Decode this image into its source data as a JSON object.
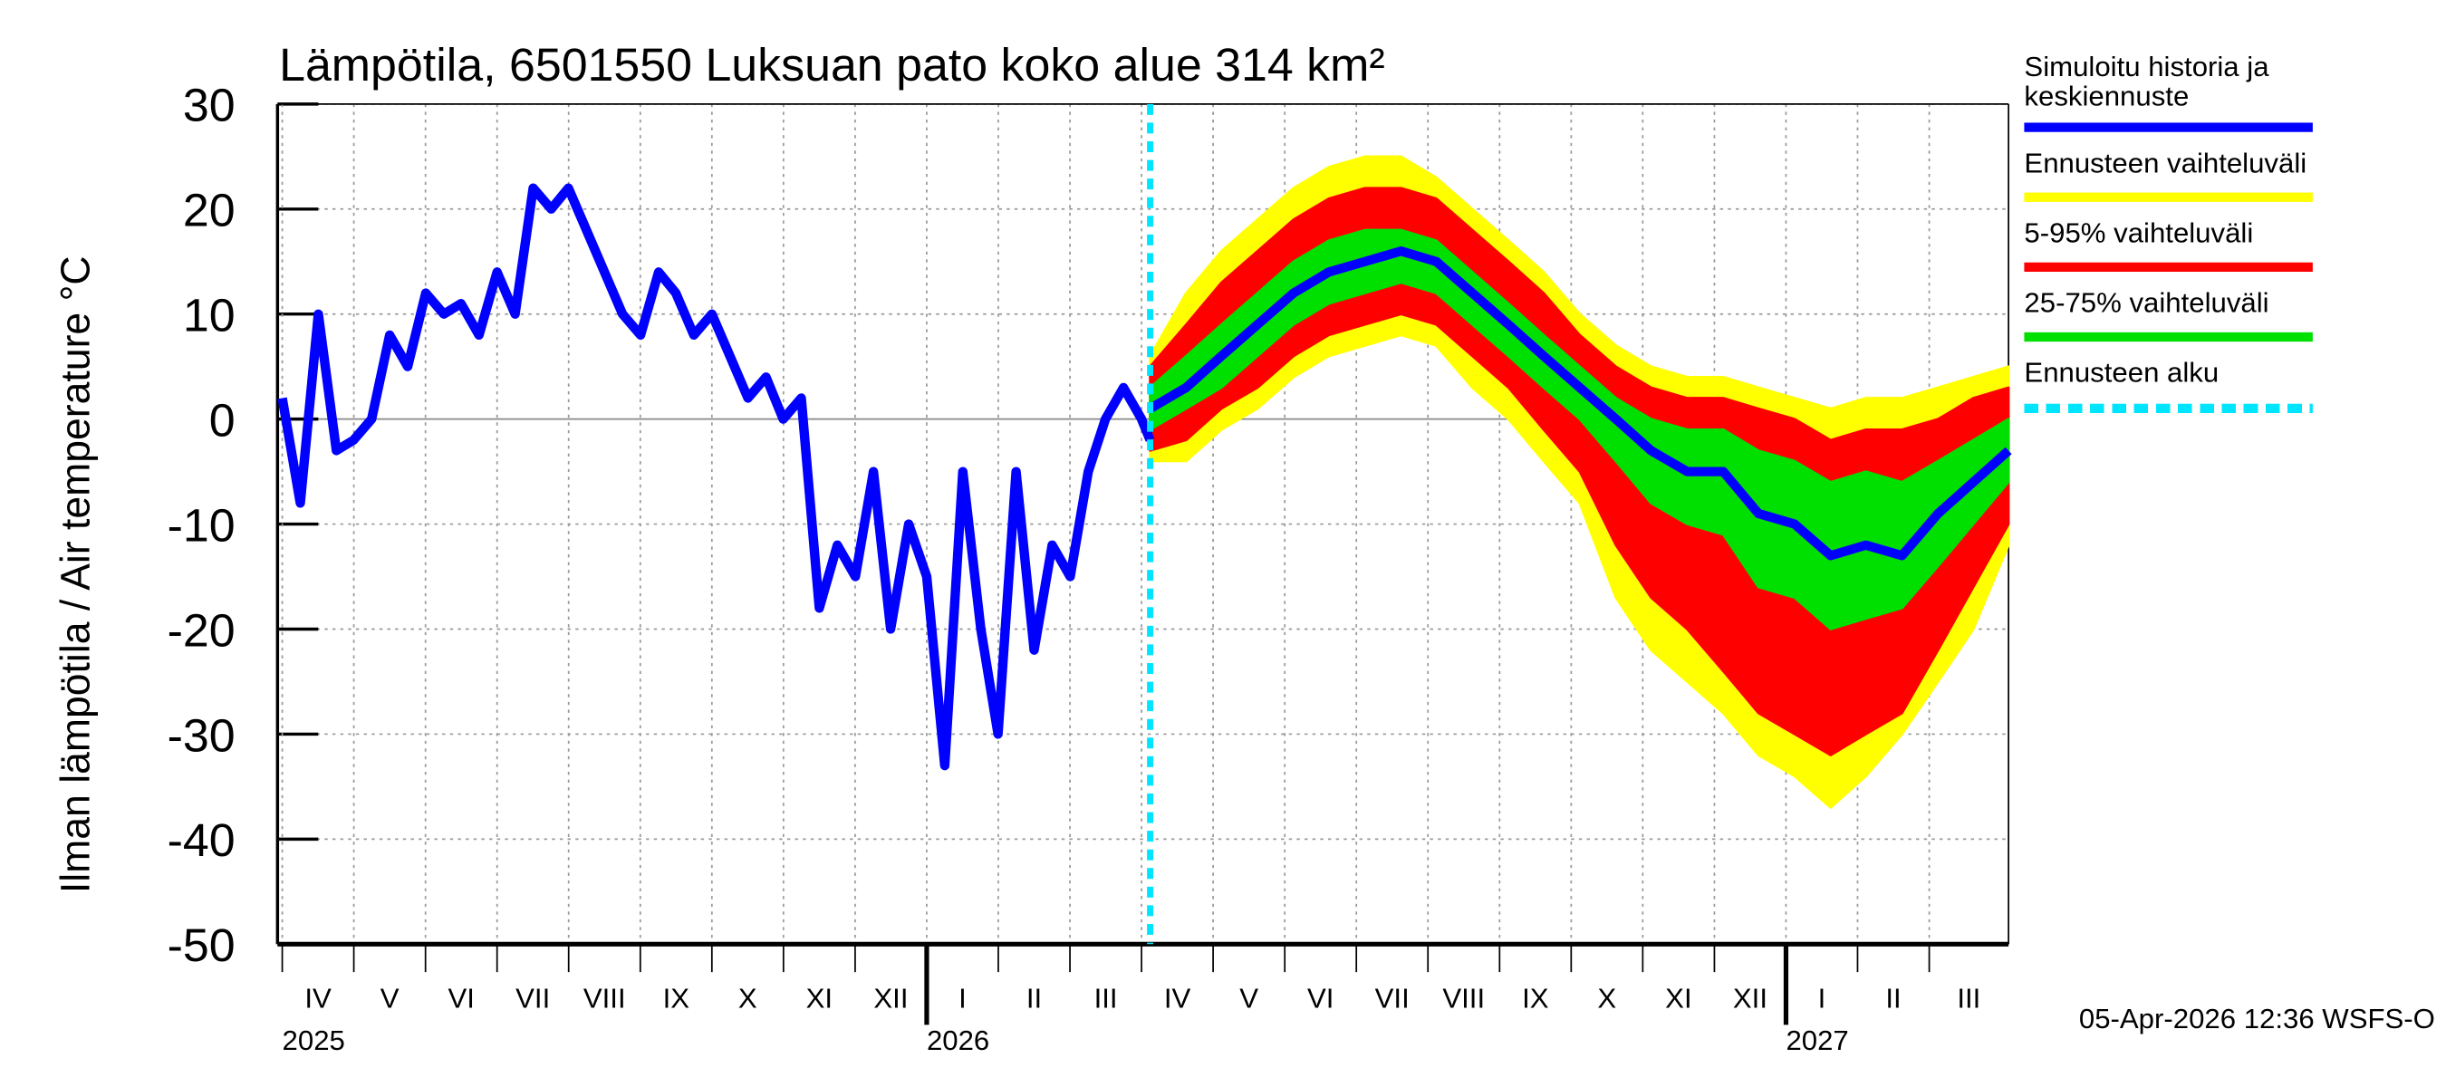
{
  "chart_data": {
    "type": "line",
    "title": "Lämpötila, 6501550 Luksuan pato koko alue 314 km²",
    "y_label": "Ilman lämpötila / Air temperature   °C",
    "footer": "05-Apr-2026 12:36 WSFS-O",
    "xlim": [
      2025.2445,
      2027.259
    ],
    "ylim": [
      -50,
      30
    ],
    "yticks": [
      -50,
      -40,
      -30,
      -20,
      -10,
      0,
      10,
      20,
      30
    ],
    "xticks": [
      {
        "value": 2025.25,
        "label": "IV"
      },
      {
        "value": 2025.3333,
        "label": "V"
      },
      {
        "value": 2025.4167,
        "label": "VI"
      },
      {
        "value": 2025.5,
        "label": "VII"
      },
      {
        "value": 2025.5833,
        "label": "VIII"
      },
      {
        "value": 2025.6667,
        "label": "IX"
      },
      {
        "value": 2025.75,
        "label": "X"
      },
      {
        "value": 2025.8333,
        "label": "XI"
      },
      {
        "value": 2025.9167,
        "label": "XII"
      },
      {
        "value": 2026.0,
        "label": "I"
      },
      {
        "value": 2026.0833,
        "label": "II"
      },
      {
        "value": 2026.1667,
        "label": "III"
      },
      {
        "value": 2026.25,
        "label": "IV"
      },
      {
        "value": 2026.3333,
        "label": "V"
      },
      {
        "value": 2026.4167,
        "label": "VI"
      },
      {
        "value": 2026.5,
        "label": "VII"
      },
      {
        "value": 2026.5833,
        "label": "VIII"
      },
      {
        "value": 2026.6667,
        "label": "IX"
      },
      {
        "value": 2026.75,
        "label": "X"
      },
      {
        "value": 2026.8333,
        "label": "XI"
      },
      {
        "value": 2026.9167,
        "label": "XII"
      },
      {
        "value": 2027.0,
        "label": "I"
      },
      {
        "value": 2027.0833,
        "label": "II"
      },
      {
        "value": 2027.1667,
        "label": "III"
      }
    ],
    "year_ticks": [
      {
        "value": 2025.25,
        "label": "2025"
      },
      {
        "value": 2026.0,
        "label": "2026"
      },
      {
        "value": 2027.0,
        "label": "2027"
      }
    ],
    "grid": true,
    "history": {
      "name": "Simuloitu historia ja keskiennuste",
      "color": "#0000ff",
      "x": [
        2025.25,
        2025.271,
        2025.292,
        2025.313,
        2025.333,
        2025.354,
        2025.375,
        2025.396,
        2025.417,
        2025.438,
        2025.458,
        2025.479,
        2025.5,
        2025.521,
        2025.542,
        2025.563,
        2025.583,
        2025.604,
        2025.625,
        2025.646,
        2025.667,
        2025.688,
        2025.708,
        2025.729,
        2025.75,
        2025.771,
        2025.792,
        2025.813,
        2025.833,
        2025.854,
        2025.875,
        2025.896,
        2025.917,
        2025.938,
        2025.958,
        2025.979,
        2026.0,
        2026.021,
        2026.042,
        2026.063,
        2026.083,
        2026.104,
        2026.125,
        2026.146,
        2026.167,
        2026.188,
        2026.208,
        2026.229,
        2026.25,
        2026.26
      ],
      "values": [
        2,
        -8,
        10,
        -3,
        -2,
        0,
        8,
        5,
        12,
        10,
        11,
        8,
        14,
        10,
        22,
        20,
        22,
        18,
        14,
        10,
        8,
        14,
        12,
        8,
        10,
        6,
        2,
        4,
        0,
        2,
        -18,
        -12,
        -15,
        -5,
        -20,
        -10,
        -15,
        -33,
        -5,
        -20,
        -30,
        -5,
        -22,
        -12,
        -15,
        -5,
        0,
        3,
        0,
        -2
      ]
    },
    "forecast": {
      "x": [
        2026.26,
        2026.302,
        2026.343,
        2026.385,
        2026.427,
        2026.468,
        2026.51,
        2026.552,
        2026.593,
        2026.635,
        2026.677,
        2026.718,
        2026.76,
        2026.802,
        2026.843,
        2026.885,
        2026.927,
        2026.968,
        2027.01,
        2027.052,
        2027.093,
        2027.135,
        2027.177,
        2027.218,
        2027.259
      ],
      "median": [
        1,
        3,
        6,
        9,
        12,
        14,
        15,
        16,
        15,
        12,
        9,
        6,
        3,
        0,
        -3,
        -5,
        -5,
        -9,
        -10,
        -13,
        -12,
        -13,
        -9,
        -6,
        -3
      ],
      "bands": [
        {
          "name": "Ennusteen vaihteluväli",
          "color": "#ffff00",
          "low": [
            -4,
            -4,
            -1,
            1,
            4,
            6,
            7,
            8,
            7,
            3,
            0,
            -4,
            -8,
            -17,
            -22,
            -25,
            -28,
            -32,
            -34,
            -37,
            -34,
            -30,
            -25,
            -20,
            -12
          ],
          "high": [
            6,
            12,
            16,
            19,
            22,
            24,
            25,
            25,
            23,
            20,
            17,
            14,
            10,
            7,
            5,
            4,
            4,
            3,
            2,
            1,
            2,
            2,
            3,
            4,
            5
          ]
        },
        {
          "name": "5-95% vaihteluväli",
          "color": "#ff0000",
          "low": [
            -3,
            -2,
            1,
            3,
            6,
            8,
            9,
            10,
            9,
            6,
            3,
            -1,
            -5,
            -12,
            -17,
            -20,
            -24,
            -28,
            -30,
            -32,
            -30,
            -28,
            -22,
            -16,
            -10
          ],
          "high": [
            5,
            9,
            13,
            16,
            19,
            21,
            22,
            22,
            21,
            18,
            15,
            12,
            8,
            5,
            3,
            2,
            2,
            1,
            0,
            -2,
            -1,
            -1,
            0,
            2,
            3
          ]
        },
        {
          "name": "25-75% vaihteluväli",
          "color": "#00e000",
          "low": [
            -1,
            1,
            3,
            6,
            9,
            11,
            12,
            13,
            12,
            9,
            6,
            3,
            0,
            -4,
            -8,
            -10,
            -11,
            -16,
            -17,
            -20,
            -19,
            -18,
            -14,
            -10,
            -6
          ],
          "high": [
            3,
            6,
            9,
            12,
            15,
            17,
            18,
            18,
            17,
            14,
            11,
            8,
            5,
            2,
            0,
            -1,
            -1,
            -3,
            -4,
            -6,
            -5,
            -6,
            -4,
            -2,
            0
          ]
        }
      ]
    },
    "forecast_start": {
      "name": "Ennusteen alku",
      "color": "#00e5ff",
      "x": 2026.26
    }
  }
}
